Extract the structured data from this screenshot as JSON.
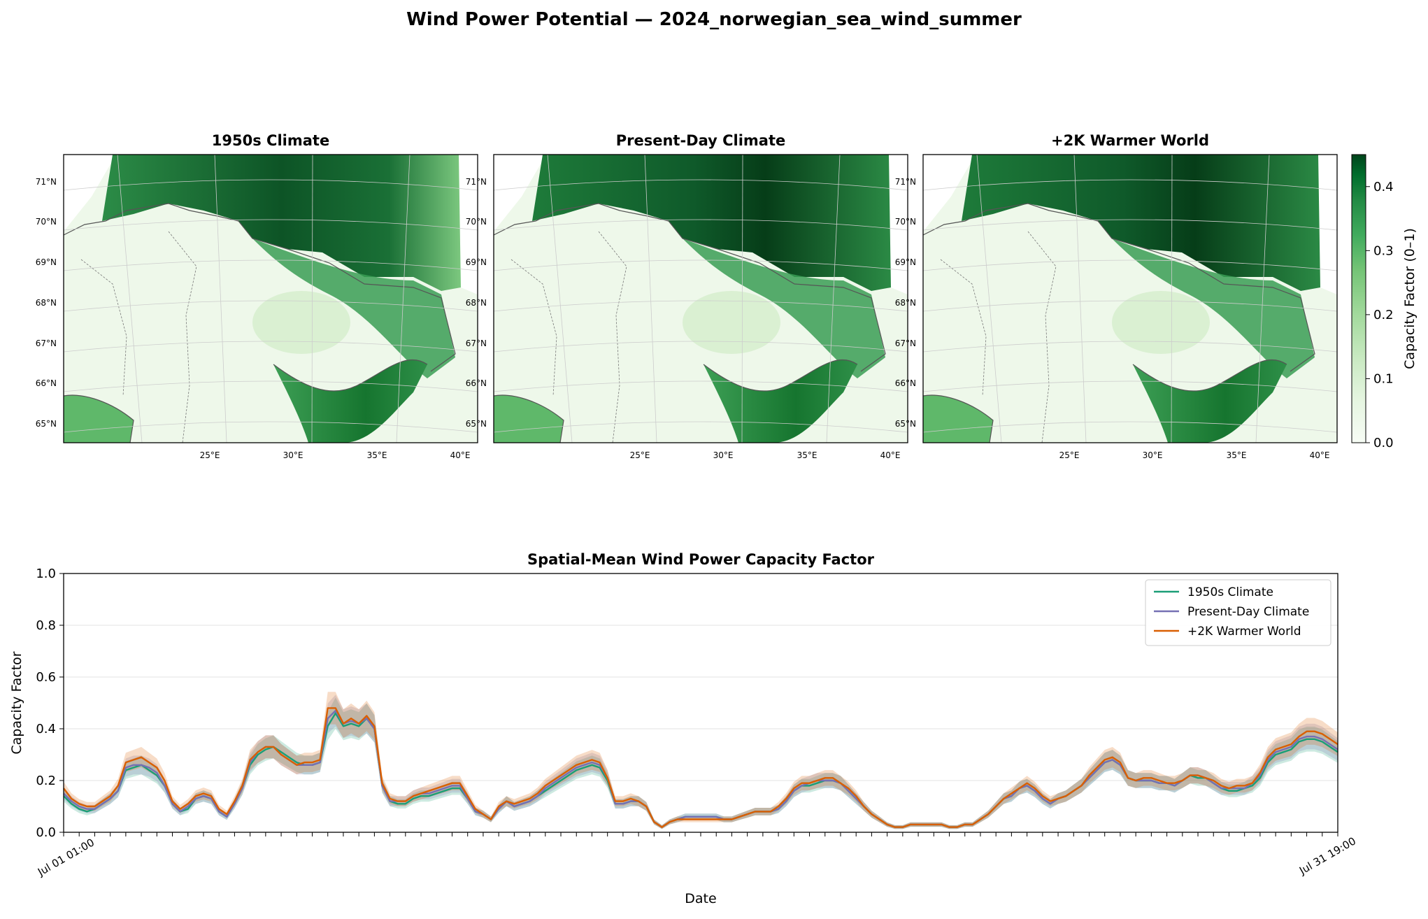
{
  "figure": {
    "title": "Wind Power Potential — 2024_norwegian_sea_wind_summer"
  },
  "colors": {
    "scenario_1950s": "#1b9e77",
    "scenario_present": "#7570b3",
    "scenario_warm": "#d95f02",
    "map_cmap_low": "#f7fcf5",
    "map_cmap_high": "#00441b",
    "coastline": "#555555",
    "grid": "#cccccc"
  },
  "chart_data": [
    {
      "type": "heatmap",
      "title": "1950s Climate",
      "lat_ticks": [
        "71°N",
        "70°N",
        "69°N",
        "68°N",
        "67°N",
        "66°N",
        "65°N"
      ],
      "lon_ticks": [
        "25°E",
        "30°E",
        "35°E",
        "40°E"
      ]
    },
    {
      "type": "heatmap",
      "title": "Present-Day Climate",
      "lat_ticks": [
        "71°N",
        "70°N",
        "69°N",
        "68°N",
        "67°N",
        "66°N",
        "65°N"
      ],
      "lon_ticks": [
        "25°E",
        "30°E",
        "35°E",
        "40°E"
      ]
    },
    {
      "type": "heatmap",
      "title": "+2K Warmer World",
      "lat_ticks": [
        "71°N",
        "70°N",
        "69°N",
        "68°N",
        "67°N",
        "66°N",
        "65°N"
      ],
      "lon_ticks": [
        "25°E",
        "30°E",
        "35°E",
        "40°E"
      ],
      "colorbar": {
        "label": "Capacity Factor (0–1)",
        "range": [
          0,
          0.45
        ],
        "ticks": [
          0.0,
          0.1,
          0.2,
          0.3,
          0.4
        ],
        "tick_labels": [
          "0.0",
          "0.1",
          "0.2",
          "0.3",
          "0.4"
        ]
      }
    },
    {
      "type": "line",
      "title": "Spatial-Mean Wind Power Capacity Factor",
      "xlabel": "Date",
      "ylabel": "Capacity Factor",
      "ylim": [
        0,
        1.0
      ],
      "yticks": [
        "0.0",
        "0.2",
        "0.4",
        "0.6",
        "0.8",
        "1.0"
      ],
      "grid": "y",
      "legend": "upper right",
      "x_range_labels": [
        "Jul 01 01:00",
        "Jul 31 19:00"
      ],
      "time_step_hours": 6,
      "series": [
        {
          "name": "1950s Climate",
          "values": [
            0.14,
            0.11,
            0.09,
            0.08,
            0.09,
            0.11,
            0.13,
            0.16,
            0.24,
            0.25,
            0.26,
            0.24,
            0.22,
            0.18,
            0.11,
            0.08,
            0.09,
            0.13,
            0.14,
            0.13,
            0.08,
            0.06,
            0.11,
            0.17,
            0.26,
            0.3,
            0.32,
            0.33,
            0.31,
            0.29,
            0.27,
            0.26,
            0.26,
            0.27,
            0.41,
            0.46,
            0.41,
            0.42,
            0.41,
            0.44,
            0.4,
            0.18,
            0.12,
            0.11,
            0.11,
            0.13,
            0.14,
            0.14,
            0.15,
            0.16,
            0.17,
            0.17,
            0.13,
            0.08,
            0.07,
            0.05,
            0.09,
            0.12,
            0.1,
            0.11,
            0.12,
            0.14,
            0.16,
            0.18,
            0.2,
            0.22,
            0.24,
            0.25,
            0.26,
            0.25,
            0.2,
            0.11,
            0.11,
            0.12,
            0.12,
            0.1,
            0.04,
            0.02,
            0.04,
            0.05,
            0.06,
            0.06,
            0.06,
            0.06,
            0.06,
            0.05,
            0.05,
            0.06,
            0.07,
            0.08,
            0.08,
            0.08,
            0.09,
            0.12,
            0.16,
            0.18,
            0.18,
            0.19,
            0.2,
            0.2,
            0.19,
            0.16,
            0.13,
            0.1,
            0.07,
            0.05,
            0.03,
            0.02,
            0.02,
            0.03,
            0.03,
            0.03,
            0.03,
            0.03,
            0.02,
            0.02,
            0.03,
            0.03,
            0.05,
            0.07,
            0.1,
            0.13,
            0.14,
            0.17,
            0.18,
            0.16,
            0.13,
            0.11,
            0.13,
            0.14,
            0.16,
            0.18,
            0.21,
            0.24,
            0.27,
            0.28,
            0.26,
            0.21,
            0.2,
            0.2,
            0.2,
            0.19,
            0.19,
            0.18,
            0.2,
            0.22,
            0.21,
            0.21,
            0.19,
            0.17,
            0.16,
            0.16,
            0.17,
            0.18,
            0.21,
            0.27,
            0.3,
            0.31,
            0.32,
            0.35,
            0.36,
            0.36,
            0.35,
            0.33,
            0.31
          ]
        },
        {
          "name": "Present-Day Climate",
          "values": [
            0.15,
            0.12,
            0.1,
            0.09,
            0.09,
            0.11,
            0.13,
            0.16,
            0.25,
            0.26,
            0.26,
            0.25,
            0.23,
            0.18,
            0.11,
            0.08,
            0.1,
            0.13,
            0.14,
            0.13,
            0.08,
            0.06,
            0.11,
            0.17,
            0.27,
            0.31,
            0.33,
            0.33,
            0.3,
            0.28,
            0.26,
            0.26,
            0.26,
            0.27,
            0.44,
            0.47,
            0.42,
            0.43,
            0.42,
            0.44,
            0.4,
            0.18,
            0.12,
            0.12,
            0.12,
            0.14,
            0.15,
            0.15,
            0.16,
            0.17,
            0.18,
            0.18,
            0.13,
            0.08,
            0.07,
            0.05,
            0.09,
            0.12,
            0.1,
            0.11,
            0.12,
            0.14,
            0.17,
            0.19,
            0.21,
            0.23,
            0.25,
            0.26,
            0.27,
            0.26,
            0.21,
            0.11,
            0.11,
            0.12,
            0.12,
            0.1,
            0.04,
            0.02,
            0.04,
            0.05,
            0.06,
            0.06,
            0.06,
            0.06,
            0.06,
            0.05,
            0.05,
            0.06,
            0.07,
            0.08,
            0.08,
            0.08,
            0.09,
            0.12,
            0.16,
            0.18,
            0.19,
            0.2,
            0.2,
            0.2,
            0.19,
            0.16,
            0.13,
            0.1,
            0.07,
            0.05,
            0.03,
            0.02,
            0.02,
            0.03,
            0.03,
            0.03,
            0.03,
            0.03,
            0.02,
            0.02,
            0.03,
            0.03,
            0.05,
            0.07,
            0.1,
            0.13,
            0.14,
            0.17,
            0.18,
            0.16,
            0.13,
            0.11,
            0.13,
            0.14,
            0.16,
            0.18,
            0.21,
            0.24,
            0.27,
            0.28,
            0.26,
            0.21,
            0.2,
            0.2,
            0.2,
            0.19,
            0.19,
            0.18,
            0.2,
            0.22,
            0.22,
            0.21,
            0.19,
            0.17,
            0.17,
            0.17,
            0.17,
            0.19,
            0.22,
            0.28,
            0.31,
            0.32,
            0.33,
            0.36,
            0.37,
            0.37,
            0.36,
            0.34,
            0.32
          ]
        },
        {
          "name": "+2K Warmer World",
          "values": [
            0.17,
            0.13,
            0.11,
            0.1,
            0.1,
            0.12,
            0.14,
            0.18,
            0.27,
            0.28,
            0.29,
            0.27,
            0.25,
            0.2,
            0.12,
            0.09,
            0.11,
            0.14,
            0.15,
            0.14,
            0.09,
            0.07,
            0.12,
            0.18,
            0.28,
            0.31,
            0.33,
            0.33,
            0.3,
            0.28,
            0.26,
            0.27,
            0.27,
            0.28,
            0.48,
            0.48,
            0.42,
            0.44,
            0.42,
            0.45,
            0.41,
            0.19,
            0.13,
            0.12,
            0.12,
            0.14,
            0.15,
            0.16,
            0.17,
            0.18,
            0.19,
            0.19,
            0.14,
            0.09,
            0.07,
            0.05,
            0.1,
            0.12,
            0.11,
            0.12,
            0.13,
            0.15,
            0.18,
            0.2,
            0.22,
            0.24,
            0.26,
            0.27,
            0.28,
            0.27,
            0.21,
            0.12,
            0.12,
            0.13,
            0.12,
            0.1,
            0.04,
            0.02,
            0.04,
            0.05,
            0.05,
            0.05,
            0.05,
            0.05,
            0.05,
            0.05,
            0.05,
            0.06,
            0.07,
            0.08,
            0.08,
            0.08,
            0.1,
            0.13,
            0.17,
            0.19,
            0.19,
            0.2,
            0.21,
            0.21,
            0.19,
            0.17,
            0.14,
            0.1,
            0.07,
            0.05,
            0.03,
            0.02,
            0.02,
            0.03,
            0.03,
            0.03,
            0.03,
            0.03,
            0.02,
            0.02,
            0.03,
            0.03,
            0.05,
            0.07,
            0.1,
            0.13,
            0.15,
            0.17,
            0.19,
            0.17,
            0.14,
            0.12,
            0.13,
            0.14,
            0.16,
            0.18,
            0.22,
            0.25,
            0.28,
            0.29,
            0.27,
            0.21,
            0.2,
            0.21,
            0.21,
            0.2,
            0.19,
            0.19,
            0.2,
            0.22,
            0.22,
            0.21,
            0.2,
            0.18,
            0.17,
            0.18,
            0.18,
            0.19,
            0.23,
            0.29,
            0.32,
            0.33,
            0.34,
            0.37,
            0.39,
            0.39,
            0.38,
            0.36,
            0.34
          ]
        }
      ]
    }
  ]
}
